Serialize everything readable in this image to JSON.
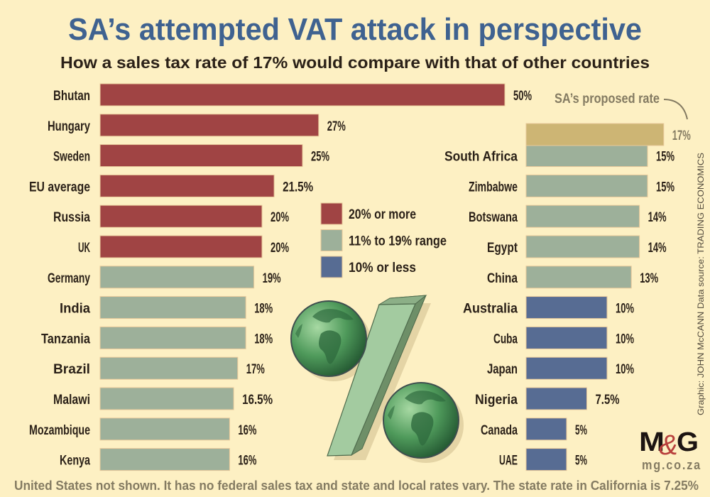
{
  "chart_data": {
    "type": "bar",
    "orientation": "horizontal",
    "title": "SA’s attempted VAT attack in perspective",
    "subtitle": "How a sales tax rate of 17% would compare with that of other countries",
    "xlabel": "",
    "ylabel": "",
    "unit": "%",
    "xlim": [
      0,
      50
    ],
    "grid": false,
    "panels": [
      {
        "name": "left",
        "categories": [
          "Bhutan",
          "Hungary",
          "Sweden",
          "EU average",
          "Russia",
          "UK",
          "Germany",
          "India",
          "Tanzania",
          "Brazil",
          "Malawi",
          "Mozambique",
          "Kenya"
        ],
        "values": [
          50,
          27,
          25,
          21.5,
          20,
          20,
          19,
          18,
          18,
          17,
          16.5,
          16,
          16
        ],
        "value_labels": [
          "50%",
          "27%",
          "25%",
          "21.5%",
          "20%",
          "20%",
          "19%",
          "18%",
          "18%",
          "17%",
          "16.5%",
          "16%",
          "16%"
        ],
        "groups": [
          "high",
          "high",
          "high",
          "high",
          "high",
          "high",
          "mid",
          "mid",
          "mid",
          "mid",
          "mid",
          "mid",
          "mid"
        ]
      },
      {
        "name": "right",
        "categories": [
          "South Africa",
          "Zimbabwe",
          "Botswana",
          "Egypt",
          "China",
          "Australia",
          "Cuba",
          "Japan",
          "Nigeria",
          "Canada",
          "UAE"
        ],
        "values": [
          15,
          15,
          14,
          14,
          13,
          10,
          10,
          10,
          7.5,
          5,
          5
        ],
        "value_labels": [
          "15%",
          "15%",
          "14%",
          "14%",
          "13%",
          "10%",
          "10%",
          "10%",
          "7.5%",
          "5%",
          "5%"
        ],
        "groups": [
          "mid",
          "mid",
          "mid",
          "mid",
          "mid",
          "low",
          "low",
          "low",
          "low",
          "low",
          "low"
        ]
      }
    ],
    "highlight": {
      "label": "SA’s proposed rate",
      "value": 17,
      "value_label": "17%",
      "color": "#cdb574"
    },
    "legend": {
      "placement": "center",
      "entries": [
        {
          "key": "high",
          "label": "20% or more",
          "color": "#a04444"
        },
        {
          "key": "mid",
          "label": "11% to 19% range",
          "color": "#9db09a"
        },
        {
          "key": "low",
          "label": "10% or less",
          "color": "#576c93"
        }
      ]
    },
    "footnote": "United States not shown. It has no federal sales tax and state and local rates vary. The state rate in California is 7.25%",
    "credit": "Graphic: JOHN McCANN  Data source: TRADING ECONOMICS"
  },
  "branding": {
    "logo_m": "M",
    "logo_amp": "&",
    "logo_g": "G",
    "url": "mg.co.za"
  },
  "colors": {
    "background": "#fdf0c3",
    "title": "#3f6290",
    "text": "#2b2118",
    "muted_text": "#847b62",
    "logo_amp": "#b8403c",
    "globe_dark": "#2f6b3e",
    "globe_light": "#7fbf86",
    "slash_front": "#a3cba0",
    "slash_side": "#6e8f68"
  },
  "illustration": {
    "name": "percent-sign-with-globes"
  }
}
